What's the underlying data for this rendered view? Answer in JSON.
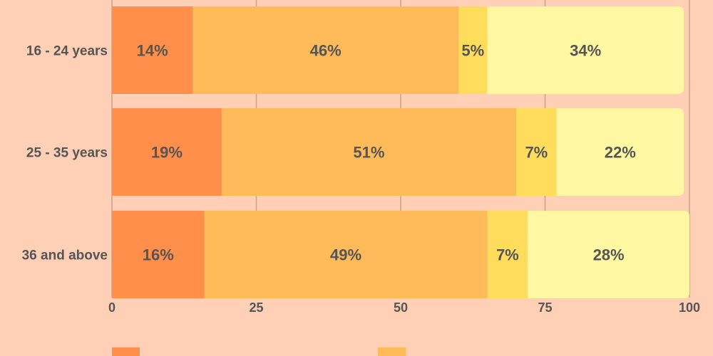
{
  "chart_data": {
    "type": "bar",
    "orientation": "horizontal",
    "stacked": true,
    "categories": [
      "16 - 24 years",
      "25 - 35 years",
      "36 and above"
    ],
    "series": [
      {
        "values": [
          14,
          19,
          16
        ],
        "labels": [
          "14%",
          "19%",
          "16%"
        ],
        "color": "#FF8F4A"
      },
      {
        "values": [
          46,
          51,
          49
        ],
        "labels": [
          "46%",
          "51%",
          "49%"
        ],
        "color": "#FFBA5A"
      },
      {
        "values": [
          5,
          7,
          7
        ],
        "labels": [
          "5%",
          "7%",
          "7%"
        ],
        "color": "#FFDC5C"
      },
      {
        "values": [
          34,
          22,
          28
        ],
        "labels": [
          "34%",
          "22%",
          "28%"
        ],
        "color": "#FFF7A2"
      }
    ],
    "xlim": [
      0,
      100
    ],
    "xticks": [
      0,
      25,
      50,
      75,
      100
    ],
    "grid": true,
    "legend": "bottom"
  },
  "colors": {
    "background": "#FFD0B5",
    "grid": "#C9A28A",
    "axis": "#555555",
    "text": "#555555"
  }
}
